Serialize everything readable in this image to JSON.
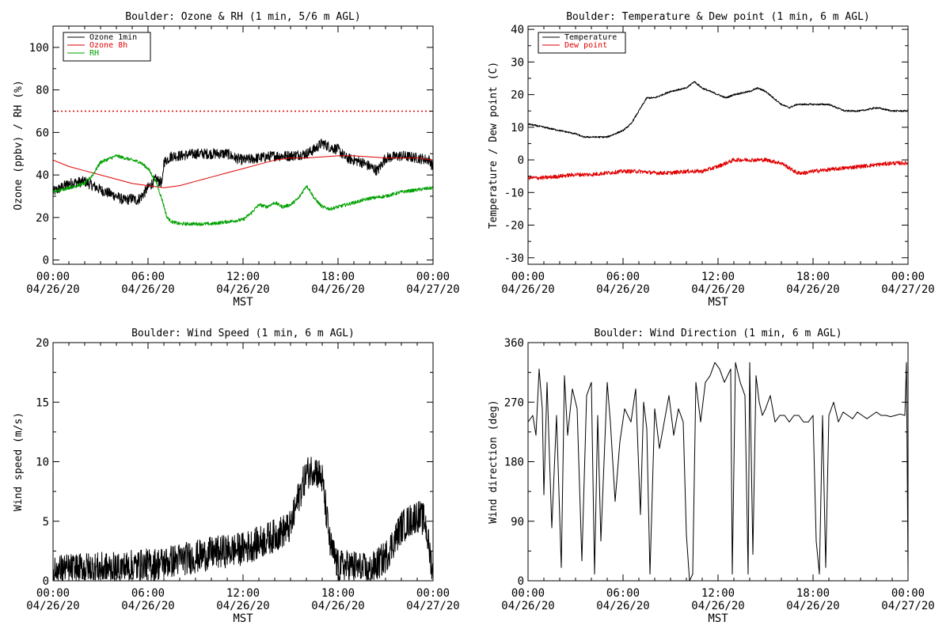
{
  "x_tick_labels": [
    {
      "time": "00:00",
      "date": "04/26/20"
    },
    {
      "time": "06:00",
      "date": "04/26/20"
    },
    {
      "time": "12:00",
      "date": "04/26/20"
    },
    {
      "time": "18:00",
      "date": "04/26/20"
    },
    {
      "time": "00:00",
      "date": "04/27/20"
    }
  ],
  "x_axis_label": "MST",
  "colors": {
    "black": "#000000",
    "red": "#e00000",
    "green": "#00a000"
  },
  "chart_data": [
    {
      "id": "ozone",
      "type": "line",
      "title": "Boulder: Ozone & RH (1 min, 5/6 m AGL)",
      "xlabel": "MST",
      "ylabel": "Ozone (ppbv) / RH (%)",
      "x_unit": "hours since 04/26/20 00:00 MST",
      "xlim": [
        0,
        24
      ],
      "ylim": [
        -2,
        110
      ],
      "yticks": [
        0,
        20,
        40,
        60,
        80,
        100
      ],
      "legend_position": "top-left",
      "reference_lines": [
        {
          "y": 70,
          "color": "#e00000",
          "style": "dotted"
        }
      ],
      "series": [
        {
          "name": "Ozone 1min",
          "color": "#000000",
          "noise": 2.5,
          "x": [
            0,
            1,
            2,
            3,
            4,
            4.5,
            5,
            5.3,
            5.6,
            6,
            6.5,
            6.9,
            7,
            7.5,
            8,
            9,
            10,
            11,
            11.5,
            12,
            13,
            14,
            15,
            16,
            16.5,
            17,
            17.5,
            18,
            18.5,
            19,
            19.5,
            20,
            20.5,
            21,
            22,
            23,
            23.8,
            24
          ],
          "y": [
            32,
            36,
            37,
            33,
            30,
            28,
            29,
            28,
            30,
            34,
            38,
            36,
            46,
            49,
            49,
            50,
            50,
            50,
            48,
            47,
            48,
            49,
            49,
            50,
            52,
            55,
            53,
            52,
            48,
            47,
            46,
            44,
            42,
            48,
            49,
            48,
            47,
            43
          ]
        },
        {
          "name": "Ozone 8h",
          "color": "#e00000",
          "noise": 0,
          "x": [
            0,
            1,
            2,
            3,
            4,
            5,
            6,
            7,
            8,
            9,
            10,
            11,
            12,
            13,
            14,
            15,
            16,
            17,
            18,
            19,
            20,
            21,
            22,
            23,
            24
          ],
          "y": [
            47,
            44,
            42,
            40,
            38,
            36,
            35,
            34,
            35,
            37,
            39,
            41,
            43,
            45,
            47,
            48,
            48,
            48.5,
            49,
            49,
            48.5,
            48,
            48,
            48,
            47
          ]
        },
        {
          "name": "RH",
          "color": "#00a000",
          "noise": 0.8,
          "x": [
            0,
            1,
            2,
            2.5,
            3,
            4,
            4.5,
            5,
            5.5,
            6,
            6.5,
            6.9,
            7.2,
            7.5,
            8,
            9,
            10,
            11,
            12,
            12.5,
            13,
            13.5,
            14,
            14.5,
            15,
            15.5,
            16,
            16.2,
            16.5,
            17,
            17.5,
            18,
            19,
            20,
            21,
            22,
            23,
            24
          ],
          "y": [
            32,
            34,
            36,
            40,
            46,
            49,
            48,
            47,
            46,
            43,
            37,
            28,
            20,
            18,
            17,
            17,
            17,
            18,
            19,
            22,
            26,
            25,
            27,
            25,
            26,
            29,
            35,
            33,
            29,
            25,
            24,
            25,
            27,
            29,
            30,
            32,
            33,
            34
          ]
        }
      ]
    },
    {
      "id": "temperature",
      "type": "line",
      "title": "Boulder: Temperature & Dew point (1 min, 6 m AGL)",
      "xlabel": "MST",
      "ylabel": "Temperature / Dew point (C)",
      "x_unit": "hours since 04/26/20 00:00 MST",
      "xlim": [
        0,
        24
      ],
      "ylim": [
        -32,
        41
      ],
      "yticks": [
        -30,
        -20,
        -10,
        0,
        10,
        20,
        30,
        40
      ],
      "legend_position": "top-left",
      "series": [
        {
          "name": "Temperature",
          "color": "#000000",
          "noise": 0.25,
          "x": [
            0,
            1,
            2,
            3,
            3.5,
            4,
            4.5,
            5,
            6,
            6.5,
            7,
            7.5,
            8,
            8.5,
            9,
            10,
            10.5,
            11,
            11.5,
            12,
            12.5,
            13,
            14,
            14.5,
            15,
            15.5,
            16,
            16.5,
            17,
            18,
            19,
            20,
            21,
            22,
            23,
            24
          ],
          "y": [
            11,
            10,
            9,
            8,
            7,
            7,
            7,
            7,
            9,
            11,
            15,
            19,
            19,
            20,
            21,
            22,
            24,
            22,
            21,
            20,
            19,
            20,
            21,
            22,
            21,
            19,
            17,
            16,
            17,
            17,
            17,
            15,
            15,
            16,
            15,
            15
          ]
        },
        {
          "name": "Dew point",
          "color": "#e00000",
          "noise": 0.6,
          "x": [
            0,
            1,
            2,
            3,
            4,
            5,
            6,
            7,
            8,
            9,
            10,
            11,
            12,
            12.5,
            13,
            14,
            15,
            16,
            17,
            17.5,
            18,
            19,
            20,
            21,
            22,
            23,
            24
          ],
          "y": [
            -5.5,
            -5.5,
            -5,
            -4.5,
            -4.5,
            -4,
            -3.5,
            -3.5,
            -4,
            -4,
            -3.5,
            -3.5,
            -2,
            -1,
            0,
            0,
            0,
            -1,
            -4,
            -4,
            -3.5,
            -3,
            -2.5,
            -2,
            -1.5,
            -1,
            -1
          ]
        }
      ]
    },
    {
      "id": "wind-speed",
      "type": "line",
      "title": "Boulder: Wind Speed (1 min, 6 m AGL)",
      "xlabel": "MST",
      "ylabel": "Wind speed (m/s)",
      "x_unit": "hours since 04/26/20 00:00 MST",
      "xlim": [
        0,
        24
      ],
      "ylim": [
        0,
        20
      ],
      "yticks": [
        0,
        5,
        10,
        15,
        20
      ],
      "series": [
        {
          "name": "",
          "color": "#000000",
          "noise": 1.4,
          "clip_min": 0,
          "x": [
            0,
            1,
            2,
            3,
            4,
            5,
            6,
            7,
            8,
            9,
            10,
            11,
            12,
            13,
            14,
            15,
            15.5,
            16,
            16.5,
            17,
            17.5,
            18,
            19,
            20,
            21,
            22,
            23,
            23.5,
            24
          ],
          "y": [
            0.8,
            0.9,
            1,
            1,
            1,
            1.2,
            1.3,
            1.5,
            1.8,
            2,
            2.3,
            2.5,
            2.7,
            3.2,
            3.8,
            4.5,
            7,
            9,
            9.5,
            8.5,
            3,
            1.2,
            1.2,
            0.8,
            2,
            4.5,
            5.5,
            5,
            0.5
          ]
        }
      ]
    },
    {
      "id": "wind-direction",
      "type": "line",
      "title": "Boulder: Wind Direction (1 min, 6 m AGL)",
      "xlabel": "MST",
      "ylabel": "Wind direction (deg)",
      "x_unit": "hours since 04/26/20 00:00 MST",
      "xlim": [
        0,
        24
      ],
      "ylim": [
        0,
        360
      ],
      "yticks": [
        0,
        90,
        180,
        270,
        360
      ],
      "series": [
        {
          "name": "",
          "color": "#000000",
          "noise": 0,
          "x": [
            0,
            0.3,
            0.5,
            0.7,
            0.9,
            1.0,
            1.2,
            1.5,
            1.8,
            2.1,
            2.3,
            2.5,
            2.8,
            3.1,
            3.4,
            3.7,
            4.0,
            4.2,
            4.4,
            4.6,
            5.0,
            5.2,
            5.5,
            5.8,
            6.1,
            6.5,
            6.8,
            7.1,
            7.3,
            7.5,
            7.7,
            8.0,
            8.3,
            8.6,
            8.9,
            9.2,
            9.5,
            9.8,
            10.0,
            10.2,
            10.4,
            10.6,
            10.9,
            11.2,
            11.5,
            11.8,
            12.1,
            12.4,
            12.8,
            12.9,
            13.1,
            13.4,
            13.7,
            13.9,
            14.0,
            14.2,
            14.4,
            14.6,
            14.8,
            15.0,
            15.3,
            15.6,
            15.9,
            16.2,
            16.5,
            16.8,
            17.1,
            17.4,
            17.7,
            18.0,
            18.2,
            18.4,
            18.6,
            18.8,
            19.0,
            19.3,
            19.6,
            19.9,
            20.2,
            20.5,
            20.8,
            21.1,
            21.4,
            21.7,
            22.0,
            22.3,
            22.6,
            22.9,
            23.2,
            23.5,
            23.8,
            23.9,
            24.0
          ],
          "y": [
            240,
            250,
            220,
            320,
            260,
            130,
            300,
            80,
            250,
            20,
            310,
            220,
            290,
            260,
            30,
            280,
            300,
            10,
            250,
            60,
            300,
            240,
            120,
            210,
            260,
            240,
            290,
            100,
            270,
            230,
            10,
            260,
            200,
            240,
            280,
            220,
            260,
            240,
            70,
            0,
            10,
            300,
            240,
            300,
            310,
            330,
            320,
            300,
            320,
            10,
            330,
            300,
            280,
            10,
            330,
            40,
            310,
            270,
            250,
            260,
            280,
            240,
            250,
            250,
            240,
            250,
            250,
            240,
            240,
            250,
            60,
            10,
            250,
            20,
            250,
            270,
            240,
            255,
            250,
            245,
            255,
            250,
            245,
            250,
            255,
            250,
            250,
            248,
            250,
            252,
            250,
            330,
            10
          ]
        }
      ]
    }
  ]
}
